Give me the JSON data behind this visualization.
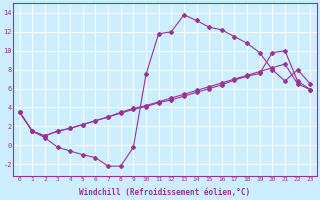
{
  "xlabel": "Windchill (Refroidissement éolien,°C)",
  "bg_color": "#cceeff",
  "line_color": "#993399",
  "xlim": [
    -0.5,
    23.5
  ],
  "ylim": [
    -3.2,
    15.0
  ],
  "xticks": [
    0,
    1,
    2,
    3,
    4,
    5,
    6,
    7,
    8,
    9,
    10,
    11,
    12,
    13,
    14,
    15,
    16,
    17,
    18,
    19,
    20,
    21,
    22,
    23
  ],
  "yticks": [
    -2,
    0,
    2,
    4,
    6,
    8,
    10,
    12,
    14
  ],
  "series1_x": [
    0,
    1,
    2,
    3,
    4,
    5,
    6,
    7,
    8,
    9,
    10,
    11,
    12,
    13,
    14,
    15,
    16,
    17,
    18,
    19,
    20,
    21,
    22,
    23
  ],
  "series1_y": [
    3.5,
    1.5,
    0.8,
    -0.2,
    -0.6,
    -1.0,
    -1.3,
    -2.2,
    -2.2,
    -0.2,
    7.5,
    11.8,
    12.0,
    13.8,
    13.2,
    12.5,
    12.2,
    11.5,
    10.8,
    9.8,
    8.0,
    6.8,
    8.0,
    6.5
  ],
  "series2_x": [
    0,
    1,
    2,
    3,
    4,
    5,
    6,
    7,
    8,
    9,
    10,
    11,
    12,
    13,
    14,
    15,
    16,
    17,
    18,
    19,
    20,
    21,
    22,
    23
  ],
  "series2_y": [
    3.5,
    1.5,
    1.0,
    1.5,
    1.8,
    2.2,
    2.6,
    3.0,
    3.5,
    3.9,
    4.2,
    4.6,
    5.0,
    5.4,
    5.8,
    6.2,
    6.6,
    7.0,
    7.4,
    7.8,
    8.2,
    8.6,
    6.5,
    5.9
  ],
  "series3_x": [
    0,
    1,
    2,
    3,
    4,
    5,
    6,
    7,
    8,
    9,
    10,
    11,
    12,
    13,
    14,
    15,
    16,
    17,
    18,
    19,
    20,
    21,
    22,
    23
  ],
  "series3_y": [
    3.5,
    1.5,
    1.0,
    1.5,
    1.8,
    2.2,
    2.6,
    3.0,
    3.4,
    3.8,
    4.1,
    4.5,
    4.8,
    5.2,
    5.6,
    6.0,
    6.4,
    6.9,
    7.3,
    7.6,
    9.8,
    10.0,
    6.8,
    5.9
  ]
}
